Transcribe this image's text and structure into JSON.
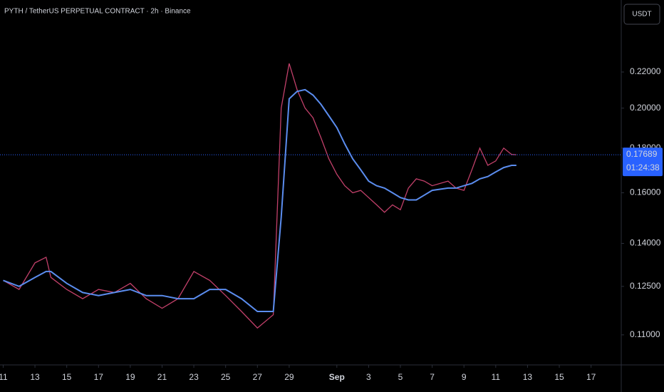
{
  "header": {
    "title": "PYTH / TetherUS PERPETUAL CONTRACT · 2h · Binance",
    "currency_button": "USDT"
  },
  "chart_data": {
    "type": "line",
    "x": [
      0,
      1,
      2,
      2.7,
      3,
      4,
      5,
      6,
      7,
      8,
      9,
      10,
      11,
      12,
      13,
      14,
      15,
      16,
      17,
      17.5,
      18,
      18.5,
      19,
      19.5,
      20,
      20.5,
      21,
      21.5,
      22,
      22.5,
      23,
      23.5,
      24,
      24.5,
      25,
      25.5,
      26,
      26.5,
      27,
      28,
      28.5,
      29,
      29.5,
      30,
      30.5,
      31,
      31.5,
      32,
      32.3
    ],
    "series": [
      {
        "color": "#c2406a",
        "values": [
          0.127,
          0.124,
          0.133,
          0.135,
          0.128,
          0.124,
          0.121,
          0.124,
          0.123,
          0.126,
          0.121,
          0.118,
          0.121,
          0.13,
          0.127,
          0.122,
          0.117,
          0.112,
          0.116,
          0.2,
          0.225,
          0.21,
          0.2,
          0.195,
          0.185,
          0.175,
          0.168,
          0.163,
          0.16,
          0.161,
          0.158,
          0.155,
          0.152,
          0.155,
          0.153,
          0.162,
          0.166,
          0.165,
          0.163,
          0.165,
          0.162,
          0.161,
          0.17,
          0.18,
          0.172,
          0.174,
          0.18,
          0.177,
          0.17689
        ]
      },
      {
        "color": "#5b8def",
        "values": [
          0.127,
          0.125,
          0.128,
          0.13,
          0.13,
          0.126,
          0.123,
          0.122,
          0.123,
          0.124,
          0.122,
          0.122,
          0.121,
          0.121,
          0.124,
          0.124,
          0.121,
          0.117,
          0.117,
          0.15,
          0.205,
          0.209,
          0.21,
          0.207,
          0.202,
          0.196,
          0.19,
          0.182,
          0.175,
          0.17,
          0.165,
          0.163,
          0.162,
          0.16,
          0.158,
          0.157,
          0.157,
          0.159,
          0.161,
          0.162,
          0.162,
          0.163,
          0.164,
          0.166,
          0.167,
          0.169,
          0.171,
          0.172,
          0.172
        ]
      }
    ],
    "xlim": [
      -0.2,
      38.9
    ],
    "xticks": [
      {
        "value": 0,
        "label": "11"
      },
      {
        "value": 2,
        "label": "13"
      },
      {
        "value": 4,
        "label": "15"
      },
      {
        "value": 6,
        "label": "17"
      },
      {
        "value": 8,
        "label": "19"
      },
      {
        "value": 10,
        "label": "21"
      },
      {
        "value": 12,
        "label": "23"
      },
      {
        "value": 14,
        "label": "25"
      },
      {
        "value": 16,
        "label": "27"
      },
      {
        "value": 18,
        "label": "29"
      },
      {
        "value": 21,
        "label": "Sep"
      },
      {
        "value": 23,
        "label": "3"
      },
      {
        "value": 25,
        "label": "5"
      },
      {
        "value": 27,
        "label": "7"
      },
      {
        "value": 29,
        "label": "9"
      },
      {
        "value": 31,
        "label": "11"
      },
      {
        "value": 33,
        "label": "13"
      },
      {
        "value": 35,
        "label": "15"
      },
      {
        "value": 37,
        "label": "17"
      }
    ],
    "ylim": [
      0.102,
      0.266
    ],
    "ylog": true,
    "yticks": [
      {
        "value": 0.11,
        "label": "0.11000"
      },
      {
        "value": 0.125,
        "label": "0.12500"
      },
      {
        "value": 0.14,
        "label": "0.14000"
      },
      {
        "value": 0.16,
        "label": "0.16000"
      },
      {
        "value": 0.18,
        "label": "0.18000"
      },
      {
        "value": 0.2,
        "label": "0.20000"
      },
      {
        "value": 0.22,
        "label": "0.22000"
      }
    ],
    "last_price": 0.17689,
    "countdown": "01:24:38",
    "last_price_color": "#2962ff"
  }
}
